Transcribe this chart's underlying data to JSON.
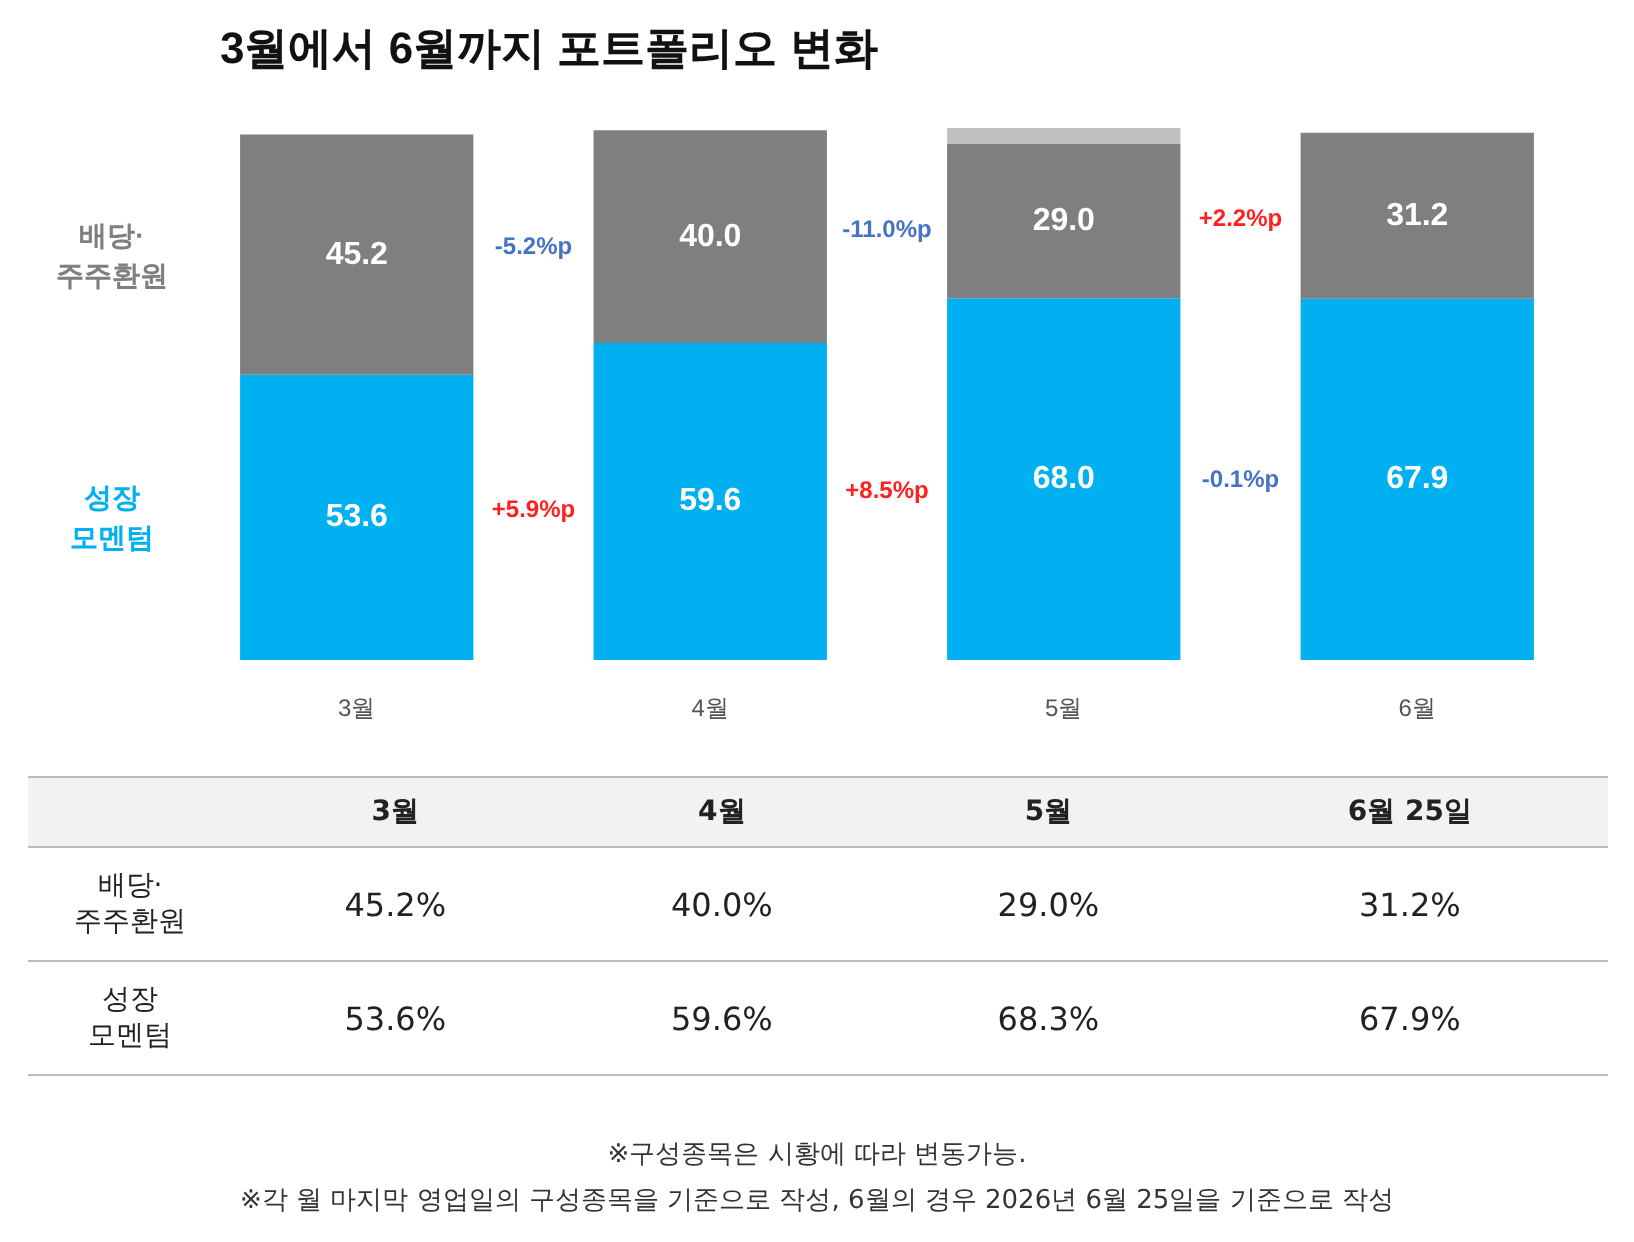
{
  "chart_data": [
    {
      "type": "bar",
      "title": "3월에서 6월까지 포트폴리오 변화",
      "categories": [
        "3월",
        "4월",
        "5월",
        "6월"
      ],
      "stacked": true,
      "grid": false,
      "tick_labels": "x",
      "ylim": [
        0,
        100
      ],
      "series": [
        {
          "name": "성장\n모멘텀",
          "color": "#00b0f0",
          "values": [
            53.6,
            59.6,
            68.0,
            67.9
          ],
          "value_labels": [
            "53.6",
            "59.6",
            "68.0",
            "67.9"
          ]
        },
        {
          "name": "배당·\n주주환원",
          "color": "#7f7f7f",
          "values": [
            45.2,
            40.0,
            29.0,
            31.2
          ],
          "value_labels": [
            "45.2",
            "40.0",
            "29.0",
            "31.2"
          ]
        },
        {
          "color": "#bfbfbf",
          "values": [
            null,
            null,
            3.0,
            null
          ]
        }
      ],
      "annotations": [
        "+5.9%p",
        "-5.2%p",
        "+8.5%p",
        "-11.0%p",
        "-0.1%p",
        "+2.2%p"
      ]
    },
    {
      "type": "other",
      "categories": [
        null,
        "3월",
        "4월",
        "5월",
        "6월 25일"
      ],
      "y_categories": [
        "배당·\n주주환원",
        "성장\n모멘텀"
      ],
      "cell_labels": [
        [
          "45.2%",
          "40.0%",
          "29.0%",
          "31.2%"
        ],
        [
          "53.6%",
          "59.6%",
          "68.3%",
          "67.9%"
        ]
      ],
      "annotations": [
        "※구성종목은 시황에 따라 변동가능.",
        "※각 월 마지막 영업일의 구성종목을 기준으로 작성, 6월의 경우 2026년 6월 25일을 기준으로 작성"
      ]
    }
  ]
}
